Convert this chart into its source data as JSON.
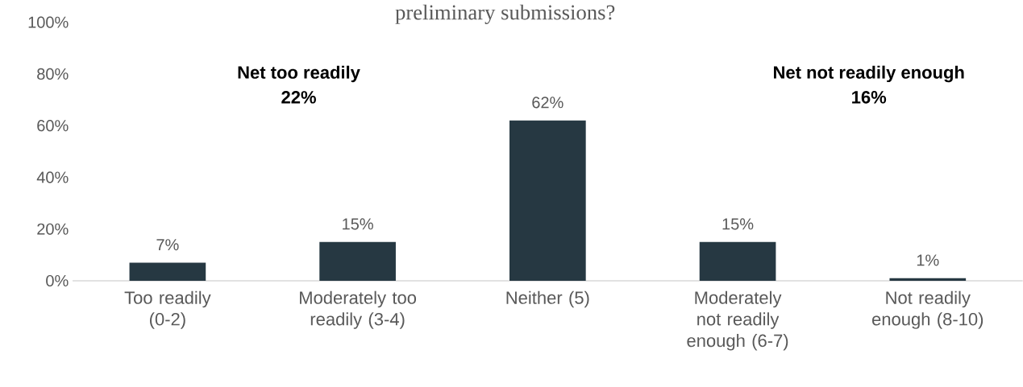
{
  "chart_data": {
    "type": "bar",
    "title": "preliminary submissions?",
    "categories": [
      "Too readily (0-2)",
      "Moderately too readily (3-4)",
      "Neither (5)",
      "Moderately not readily enough (6-7)",
      "Not readily enough (8-10)"
    ],
    "values": [
      7,
      15,
      62,
      15,
      1
    ],
    "value_labels": [
      "7%",
      "15%",
      "62%",
      "15%",
      "1%"
    ],
    "color": "#263842",
    "ylim": [
      0,
      100
    ],
    "yticks": [
      {
        "value": 0,
        "label": "0%"
      },
      {
        "value": 20,
        "label": "20%"
      },
      {
        "value": 40,
        "label": "40%"
      },
      {
        "value": 60,
        "label": "60%"
      },
      {
        "value": 80,
        "label": "80%"
      },
      {
        "value": 100,
        "label": "100%"
      }
    ],
    "annotations": [
      "Net too readily",
      "22%",
      "Net not readily enough",
      "16%"
    ],
    "grid": false
  }
}
